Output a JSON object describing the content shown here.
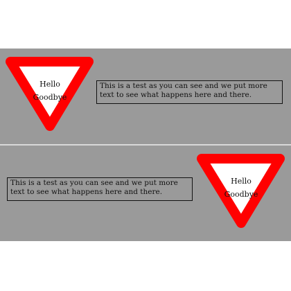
{
  "sign": {
    "line1": "Hello",
    "line2": "Goodbye",
    "border_color": "#ff0000",
    "fill_color": "#ffffff"
  },
  "paragraph": "This is a test as you can see and we put more text to see what happens here and there.",
  "colors": {
    "panel_background": "#9a9a9a",
    "text": "#111111"
  }
}
